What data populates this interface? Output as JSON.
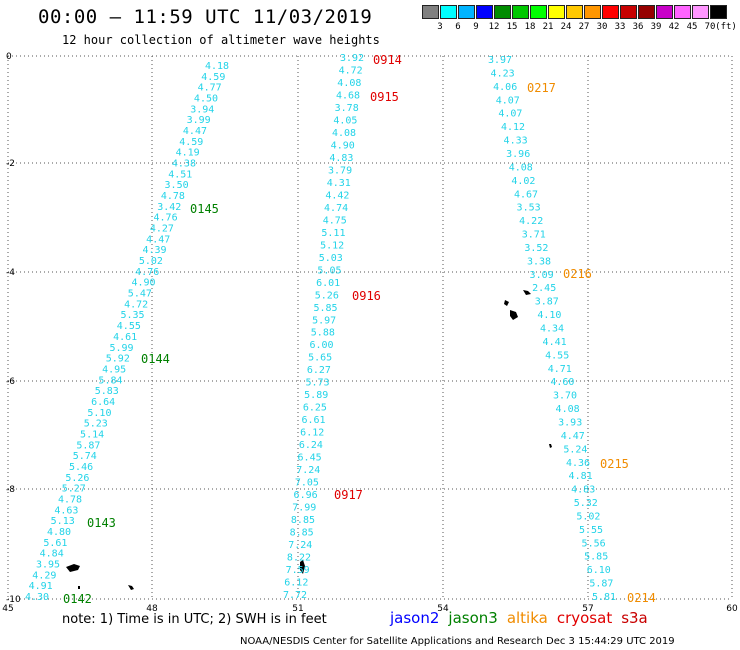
{
  "title": "00:00 – 11:59 UTC 11/03/2019",
  "subtitle": "12 hour collection of altimeter wave heights",
  "colorbar": {
    "colors": [
      "#808080",
      "#00ffff",
      "#00b4ff",
      "#0000ff",
      "#008c00",
      "#00c800",
      "#00ff00",
      "#ffff00",
      "#ffc800",
      "#ff9600",
      "#ff0000",
      "#c80000",
      "#960000",
      "#c800c8",
      "#ff64ff",
      "#ff96ff",
      "#000000"
    ],
    "ticks": [
      "3",
      "6",
      "9",
      "12",
      "15",
      "18",
      "21",
      "24",
      "27",
      "30",
      "33",
      "36",
      "39",
      "42",
      "45",
      "70"
    ],
    "unit": "(ft)"
  },
  "axes": {
    "x_ticks": [
      "45",
      "48",
      "51",
      "54",
      "57",
      "60"
    ],
    "y_ticks": [
      "0",
      "-2",
      "-4",
      "-6",
      "-8",
      "-10"
    ]
  },
  "tracks": [
    {
      "satellite": "jason3",
      "color": "#008000",
      "time_labels": [
        "0145",
        "0144",
        "0143",
        "0142"
      ],
      "values": [
        "4.18",
        "4.59",
        "4.77",
        "4.50",
        "3.94",
        "3.99",
        "4.47",
        "4.59",
        "4.19",
        "4.38",
        "4.51",
        "3.50",
        "4.78",
        "3.42",
        "4.76",
        "4.27",
        "4.47",
        "4.39",
        "5.02",
        "4.76",
        "4.90",
        "5.47",
        "4.72",
        "5.35",
        "4.55",
        "4.61",
        "5.99",
        "5.92",
        "4.95",
        "5.84",
        "5.83",
        "6.64",
        "5.10",
        "5.23",
        "5.14",
        "5.87",
        "5.74",
        "5.46",
        "5.26",
        "5.27",
        "4.78",
        "4.63",
        "5.13",
        "4.80",
        "5.61",
        "4.84",
        "3.95",
        "4.29",
        "4.91",
        "4.30"
      ]
    },
    {
      "satellite": "cryosat",
      "color": "#e00000",
      "time_labels": [
        "0914",
        "0915",
        "0916",
        "0917"
      ],
      "values": [
        "3.92",
        "4.72",
        "4.08",
        "4.68",
        "3.78",
        "4.05",
        "4.08",
        "4.90",
        "4.83",
        "3.79",
        "4.31",
        "4.42",
        "4.74",
        "4.75",
        "5.11",
        "5.12",
        "5.03",
        "5.05",
        "6.01",
        "5.26",
        "5.85",
        "5.97",
        "5.88",
        "6.00",
        "5.65",
        "6.27",
        "5.73",
        "5.89",
        "6.25",
        "6.61",
        "6.12",
        "6.24",
        "6.45",
        "7.24",
        "7.05",
        "6.96",
        "7.99",
        "8.85",
        "8.85",
        "7.24",
        "8.22",
        "7.59",
        "6.12",
        "7.72"
      ]
    },
    {
      "satellite": "altika",
      "color": "#f08c00",
      "time_labels": [
        "0217",
        "0216",
        "0215",
        "0214"
      ],
      "values": [
        "3.97",
        "4.23",
        "4.06",
        "4.07",
        "4.07",
        "4.12",
        "4.33",
        "3.96",
        "4.08",
        "4.02",
        "4.67",
        "3.53",
        "4.22",
        "3.71",
        "3.52",
        "3.38",
        "3.09",
        "2.45",
        "3.87",
        "4.10",
        "4.34",
        "4.41",
        "4.55",
        "4.71",
        "4.60",
        "3.70",
        "4.08",
        "3.93",
        "4.47",
        "5.24",
        "4.36",
        "4.81",
        "4.83",
        "5.32",
        "5.02",
        "5.55",
        "5.56",
        "5.85",
        "6.10",
        "5.87",
        "5.81"
      ]
    }
  ],
  "note": "note: 1) Time is in UTC; 2) SWH is in feet",
  "legend": [
    {
      "name": "jason2",
      "color": "#0000ff"
    },
    {
      "name": "jason3",
      "color": "#008000"
    },
    {
      "name": "altika",
      "color": "#f08c00"
    },
    {
      "name": "cryosat",
      "color": "#e00000"
    },
    {
      "name": "s3a",
      "color": "#c80000"
    }
  ],
  "credit": "NOAA/NESDIS Center for Satellite Applications and Research   Dec  3 15:44:29 UTC 2019"
}
